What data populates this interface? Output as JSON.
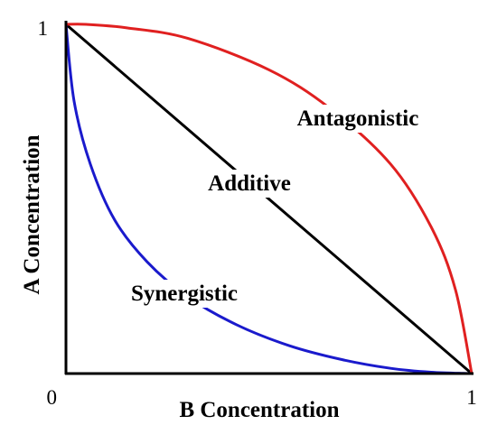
{
  "chart_data": {
    "type": "line",
    "title": "",
    "xlabel": "B Concentration",
    "ylabel": "A Concentration",
    "xlim": [
      0,
      1
    ],
    "ylim": [
      0,
      1
    ],
    "grid": false,
    "origin_label": "0",
    "x_max_label": "1",
    "y_max_label": "1",
    "series": [
      {
        "name": "Additive",
        "color": "#000000",
        "x": [
          0,
          1
        ],
        "y": [
          1,
          0
        ]
      },
      {
        "name": "Antagonistic",
        "color": "#e02020",
        "x": [
          0,
          0.05,
          0.15,
          0.3,
          0.5,
          0.65,
          0.8,
          0.9,
          0.96,
          1
        ],
        "y": [
          1,
          1.0,
          0.99,
          0.96,
          0.87,
          0.76,
          0.6,
          0.42,
          0.24,
          0
        ]
      },
      {
        "name": "Synergistic",
        "color": "#1a1acc",
        "x": [
          0,
          0.02,
          0.06,
          0.12,
          0.2,
          0.3,
          0.42,
          0.55,
          0.68,
          0.8,
          0.9,
          1
        ],
        "y": [
          1,
          0.78,
          0.6,
          0.44,
          0.32,
          0.22,
          0.14,
          0.08,
          0.04,
          0.015,
          0.004,
          0
        ]
      }
    ]
  }
}
